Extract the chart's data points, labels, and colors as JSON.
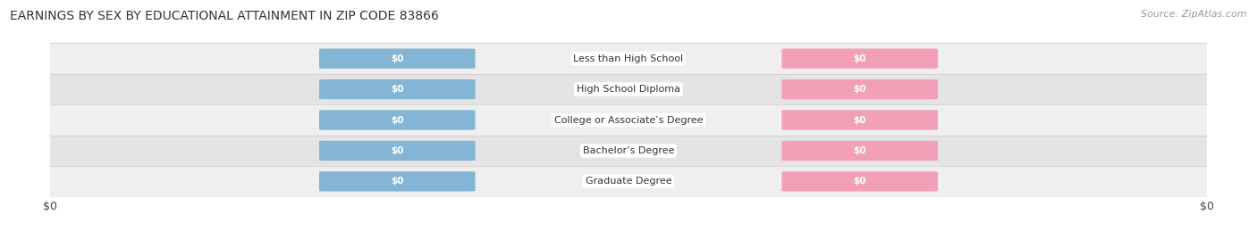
{
  "title": "EARNINGS BY SEX BY EDUCATIONAL ATTAINMENT IN ZIP CODE 83866",
  "source": "Source: ZipAtlas.com",
  "categories": [
    "Less than High School",
    "High School Diploma",
    "College or Associate’s Degree",
    "Bachelor’s Degree",
    "Graduate Degree"
  ],
  "male_values": [
    0,
    0,
    0,
    0,
    0
  ],
  "female_values": [
    0,
    0,
    0,
    0,
    0
  ],
  "male_color": "#85b5d5",
  "female_color": "#f2a0b8",
  "row_bg_colors": [
    "#efefef",
    "#e4e4e4"
  ],
  "label_color": "#ffffff",
  "center_label_color": "#333333",
  "title_fontsize": 10,
  "source_fontsize": 8,
  "figsize": [
    14.06,
    2.69
  ],
  "dpi": 100,
  "xlabel_left": "$0",
  "xlabel_right": "$0"
}
